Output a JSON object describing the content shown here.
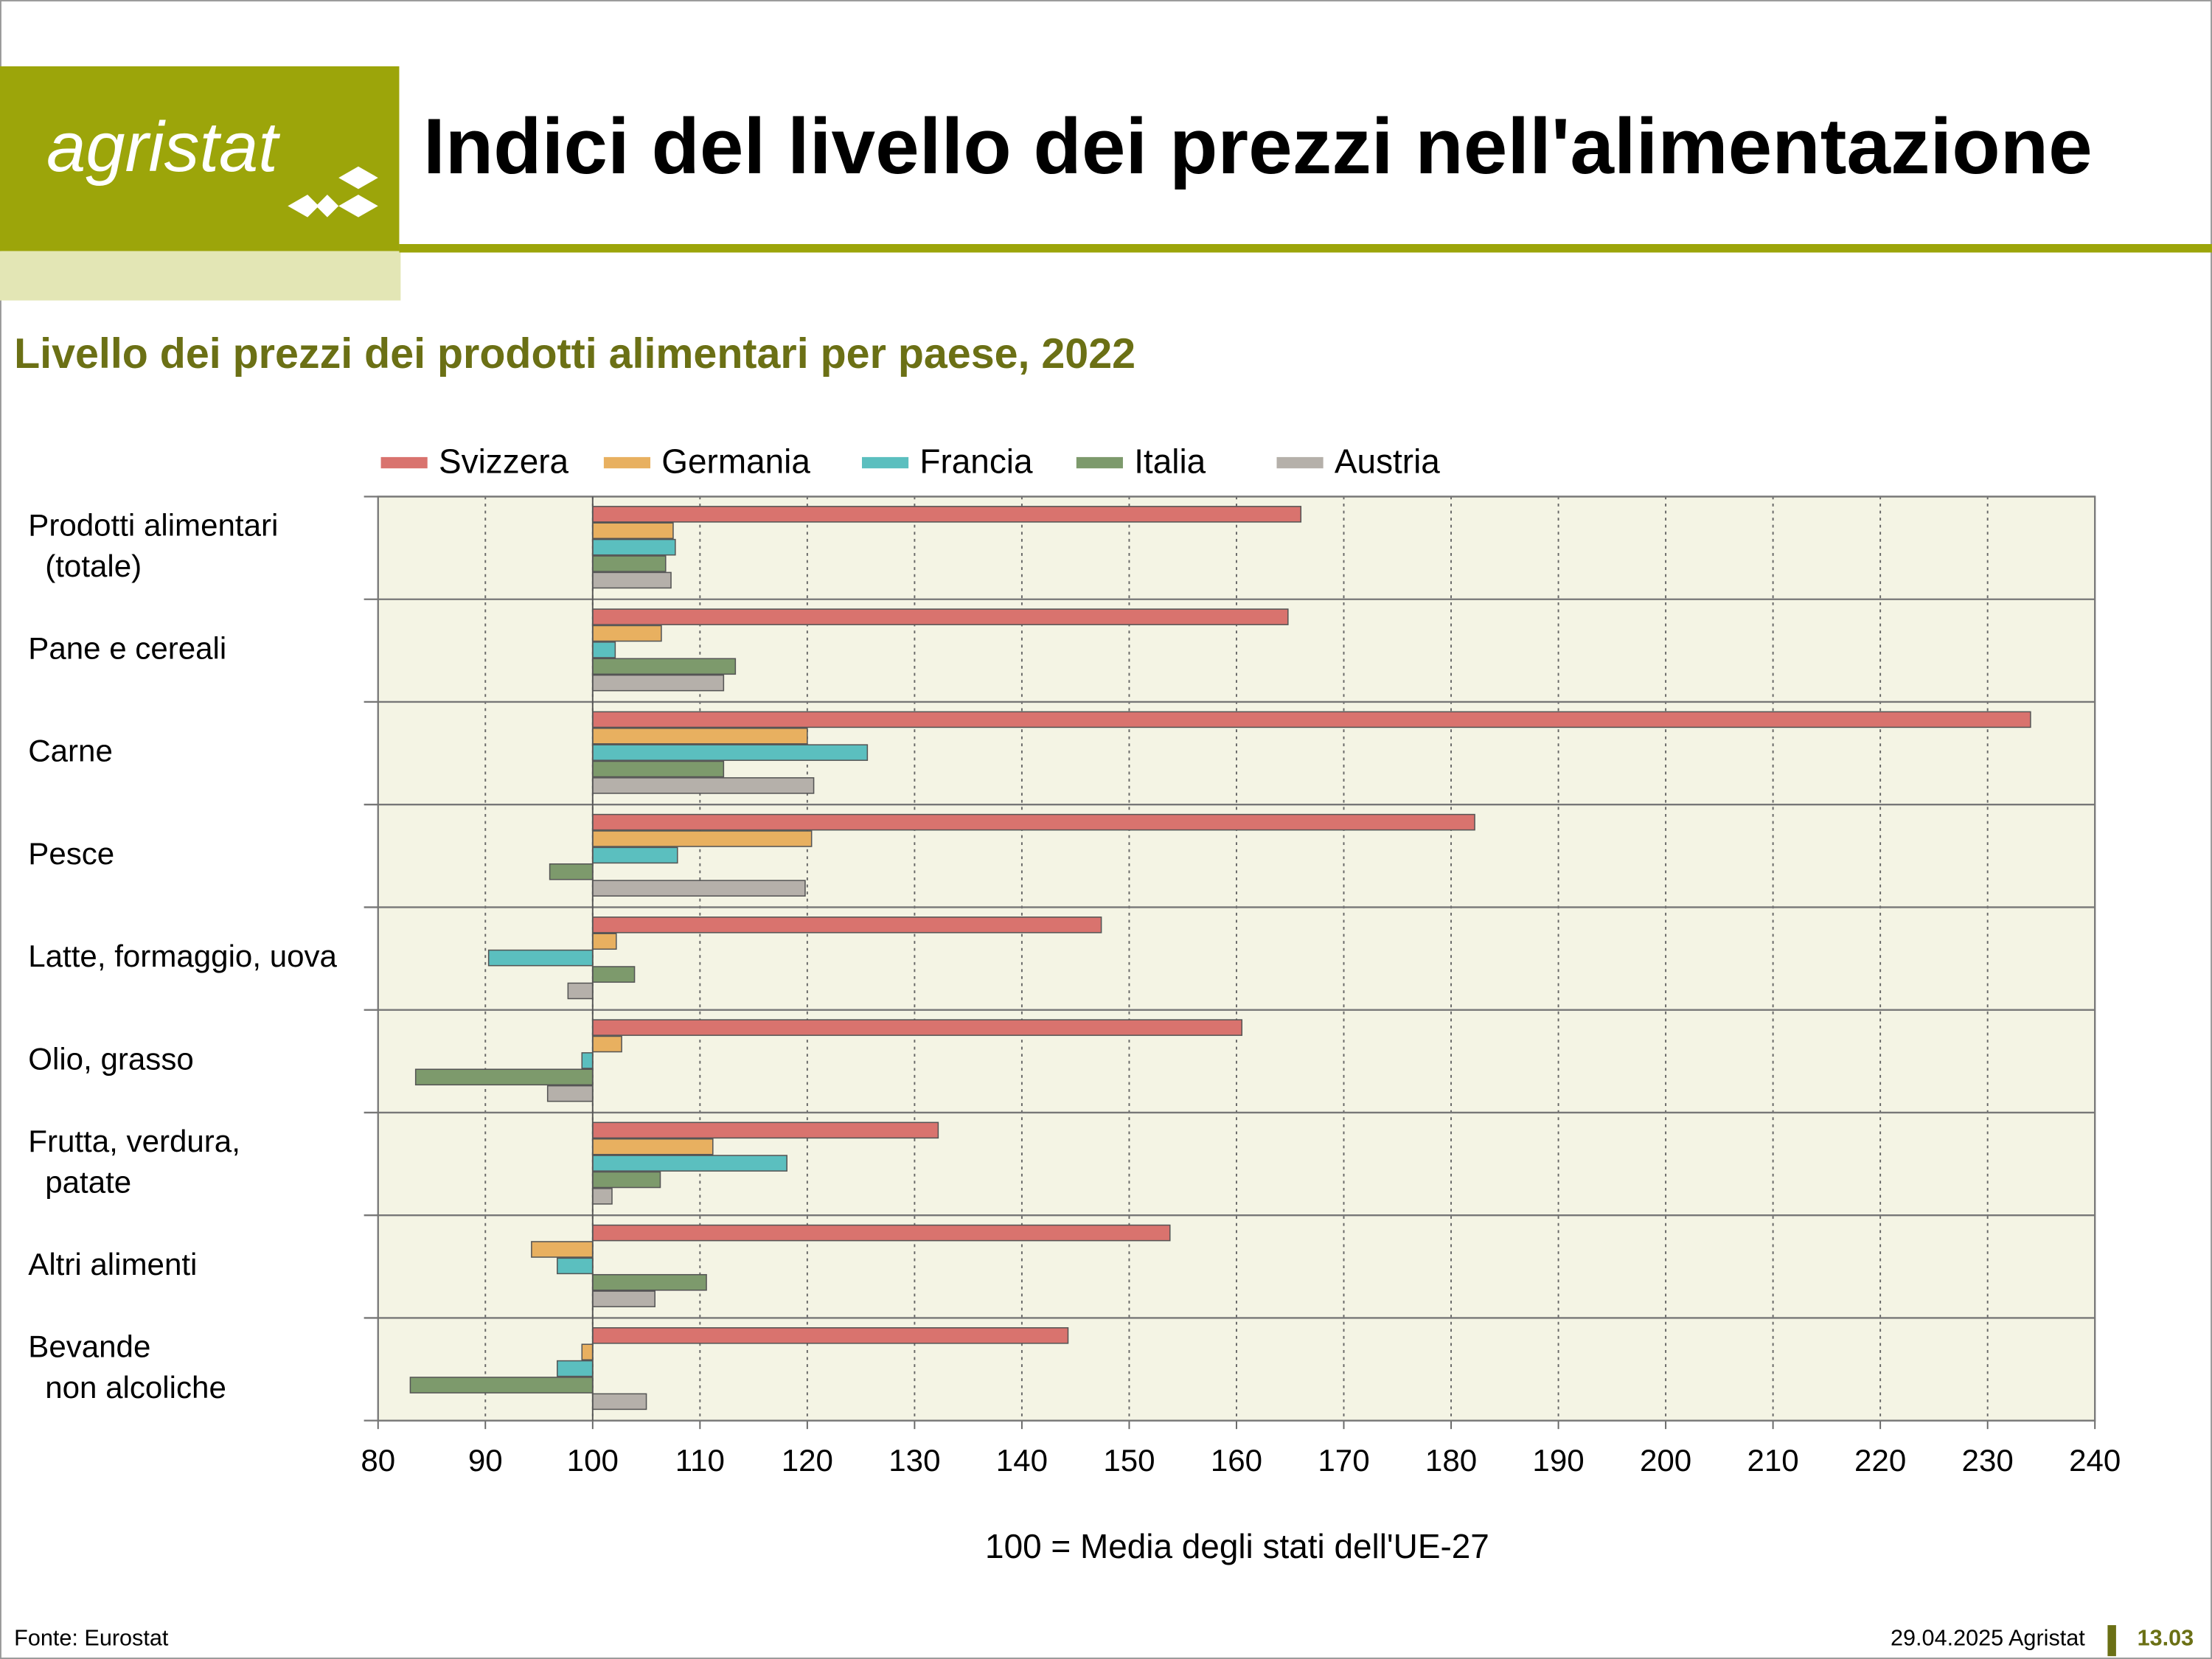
{
  "header": {
    "logo": "agristat",
    "title": "Indici del livello dei prezzi nell'alimentazione"
  },
  "chart_data": {
    "type": "hbar",
    "title": "Livello dei prezzi dei prodotti alimentari per paese, 2022",
    "x_label": "100 = Media degli stati dell'UE-27",
    "categories": [
      "Prodotti alimentari\n(totale)",
      "Pane e cereali",
      "Carne",
      "Pesce",
      "Latte, formaggio, uova",
      "Olio, grasso",
      "Frutta, verdura,\npatate",
      "Altri alimenti",
      "Bevande\nnon alcoliche"
    ],
    "series": [
      {
        "name": "Svizzera",
        "color": "#d9736e",
        "values": [
          166.0,
          164.8,
          234.0,
          182.2,
          147.4,
          160.5,
          132.2,
          153.8,
          144.3
        ]
      },
      {
        "name": "Germania",
        "color": "#e8b060",
        "values": [
          107.5,
          106.4,
          120.0,
          120.4,
          102.2,
          102.7,
          111.2,
          94.3,
          99.0
        ]
      },
      {
        "name": "Francia",
        "color": "#5bbfbf",
        "values": [
          107.7,
          102.1,
          125.6,
          107.9,
          90.3,
          99.0,
          118.1,
          96.7,
          96.7
        ]
      },
      {
        "name": "Italia",
        "color": "#7d9a6c",
        "values": [
          106.8,
          113.3,
          112.2,
          96.0,
          103.9,
          83.5,
          106.3,
          110.6,
          83.0
        ]
      },
      {
        "name": "Austria",
        "color": "#b5b0aa",
        "values": [
          107.3,
          112.2,
          120.6,
          119.8,
          97.7,
          95.8,
          101.8,
          105.8,
          105.0
        ]
      }
    ],
    "bar_base": 100,
    "xlim": [
      80,
      240
    ],
    "xticks": [
      80,
      90,
      100,
      110,
      120,
      130,
      140,
      150,
      160,
      170,
      180,
      190,
      200,
      210,
      220,
      230,
      240
    ],
    "grid": true,
    "legend": "top"
  },
  "footer": {
    "source": "Fonte: Eurostat",
    "date": "29.04.2025 Agristat",
    "page": "13.03"
  }
}
